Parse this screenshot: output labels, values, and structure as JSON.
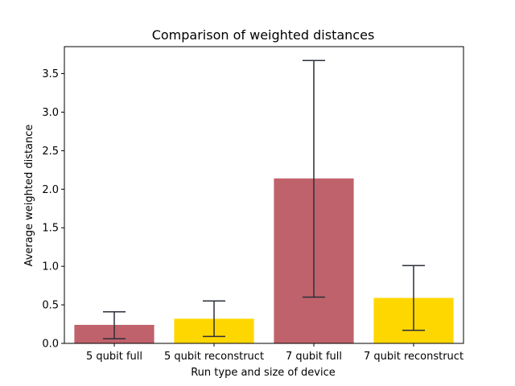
{
  "chart_data": {
    "type": "bar",
    "title": "Comparison of weighted distances",
    "xlabel": "Run type and size of device",
    "ylabel": "Average weighted distance",
    "categories": [
      "5 qubit full",
      "5 qubit reconstruct",
      "7 qubit full",
      "7 qubit reconstruct"
    ],
    "values": [
      0.24,
      0.32,
      2.14,
      0.59
    ],
    "error_low": [
      0.06,
      0.09,
      0.6,
      0.17
    ],
    "error_high": [
      0.41,
      0.55,
      3.67,
      1.01
    ],
    "bar_colors": [
      "#c0626b",
      "#ffd700",
      "#c0626b",
      "#ffd700"
    ],
    "error_color": "#2b2f3a",
    "ylim": [
      0,
      3.85
    ],
    "yticks": [
      "0.0",
      "0.5",
      "1.0",
      "1.5",
      "2.0",
      "2.5",
      "3.0",
      "3.5"
    ],
    "ytick_values": [
      0.0,
      0.5,
      1.0,
      1.5,
      2.0,
      2.5,
      3.0,
      3.5
    ],
    "grid": false,
    "legend": "none"
  }
}
